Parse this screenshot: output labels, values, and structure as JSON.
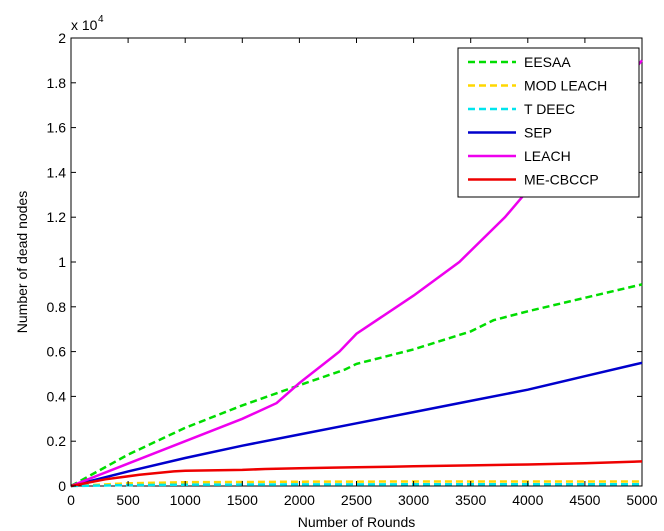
{
  "chart_data": {
    "type": "line",
    "title": "",
    "xlabel": "Number of Rounds",
    "ylabel": "Number of dead nodes",
    "xlim": [
      0,
      5000
    ],
    "ylim": [
      0,
      20000
    ],
    "y_multiplier_label": "x 10",
    "y_multiplier_exponent": "4",
    "x_ticks": [
      0,
      500,
      1000,
      1500,
      2000,
      2500,
      3000,
      3500,
      4000,
      4500,
      5000
    ],
    "x_tick_labels": [
      "0",
      "500",
      "1000",
      "1500",
      "2000",
      "2500",
      "3000",
      "3500",
      "4000",
      "4500",
      "5000"
    ],
    "y_ticks": [
      0,
      2000,
      4000,
      6000,
      8000,
      10000,
      12000,
      14000,
      16000,
      18000,
      20000
    ],
    "y_tick_labels": [
      "0",
      "0.2",
      "0.4",
      "0.6",
      "0.8",
      "1",
      "1.2",
      "1.4",
      "1.6",
      "1.8",
      "2"
    ],
    "grid": false,
    "legend_position": "top-right",
    "series": [
      {
        "name": "EESAA",
        "color": "#00dd00",
        "dash": "dashed",
        "x": [
          0,
          500,
          1000,
          1500,
          2000,
          2400,
          2500,
          3000,
          3500,
          3700,
          4000,
          4500,
          5000
        ],
        "y": [
          0,
          1400,
          2600,
          3600,
          4500,
          5200,
          5450,
          6100,
          6900,
          7400,
          7800,
          8400,
          9000
        ]
      },
      {
        "name": "MOD LEACH",
        "color": "#ffd700",
        "dash": "dashed",
        "x": [
          0,
          500,
          1000,
          1500,
          2000,
          3000,
          4000,
          5000
        ],
        "y": [
          0,
          120,
          170,
          180,
          190,
          200,
          200,
          200
        ]
      },
      {
        "name": "T DEEC",
        "color": "#00e5ee",
        "dash": "dashed",
        "x": [
          0,
          500,
          1000,
          2000,
          3000,
          4000,
          5000
        ],
        "y": [
          0,
          40,
          60,
          70,
          75,
          80,
          80
        ]
      },
      {
        "name": "SEP",
        "color": "#0000cc",
        "dash": "solid",
        "x": [
          0,
          500,
          1000,
          1500,
          2000,
          2500,
          3000,
          3500,
          4000,
          4500,
          5000
        ],
        "y": [
          0,
          650,
          1250,
          1800,
          2300,
          2800,
          3300,
          3800,
          4300,
          4900,
          5500
        ]
      },
      {
        "name": "LEACH",
        "color": "#ee00ee",
        "dash": "solid",
        "x": [
          0,
          500,
          1000,
          1500,
          1800,
          2000,
          2300,
          2350,
          2500,
          3000,
          3400,
          3800,
          4000,
          4500,
          5000
        ],
        "y": [
          0,
          1000,
          2000,
          3000,
          3700,
          4600,
          5800,
          6000,
          6800,
          8500,
          10000,
          12000,
          13200,
          16000,
          19000
        ]
      },
      {
        "name": "ME-CBCCP",
        "color": "#ee0000",
        "dash": "solid",
        "x": [
          0,
          300,
          600,
          900,
          1000,
          1500,
          1700,
          2000,
          2300,
          2500,
          2800,
          3000,
          3500,
          4000,
          4500,
          5000
        ],
        "y": [
          0,
          300,
          500,
          650,
          680,
          720,
          760,
          790,
          820,
          840,
          860,
          880,
          920,
          960,
          1020,
          1100
        ]
      }
    ]
  }
}
